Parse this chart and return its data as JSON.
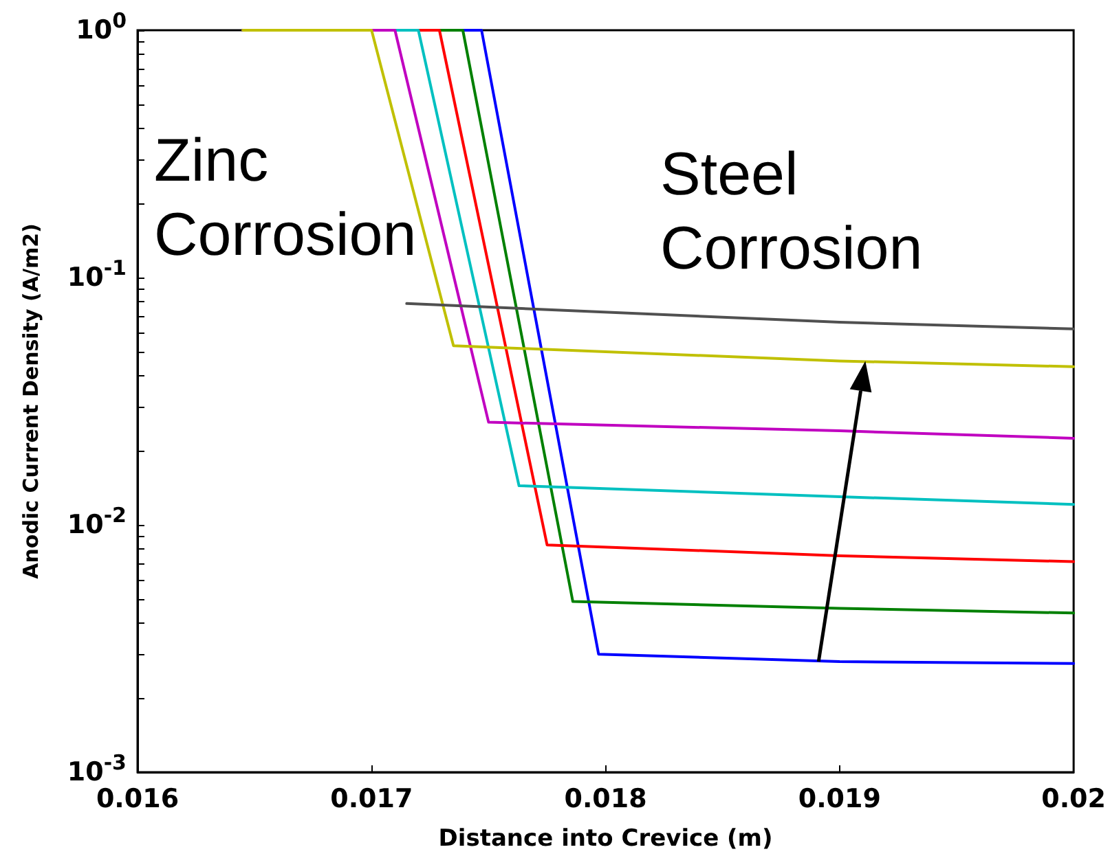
{
  "chart_data": {
    "type": "line",
    "xlabel": "Distance into Crevice (m)",
    "ylabel": "Anodic Current Density (A/m2)",
    "annotations": [
      "Zinc Corrosion",
      "Steel Corrosion"
    ],
    "series": [
      {
        "color": "#0000ff",
        "x": [
          0.01645,
          0.01747,
          0.01797,
          0.019,
          0.02
        ],
        "values": [
          1,
          1,
          0.003,
          0.0028,
          0.00275
        ]
      },
      {
        "color": "#008000",
        "x": [
          0.01645,
          0.01739,
          0.01786,
          0.019,
          0.02
        ],
        "values": [
          1,
          1,
          0.0049,
          0.0046,
          0.0044
        ]
      },
      {
        "color": "#ff0000",
        "x": [
          0.01645,
          0.01729,
          0.01775,
          0.019,
          0.02
        ],
        "values": [
          1,
          1,
          0.0083,
          0.0075,
          0.0071
        ]
      },
      {
        "color": "#00c0c0",
        "x": [
          0.01645,
          0.0172,
          0.01763,
          0.019,
          0.02
        ],
        "values": [
          1,
          1,
          0.0144,
          0.013,
          0.0121
        ]
      },
      {
        "color": "#c000c0",
        "x": [
          0.01645,
          0.0171,
          0.0175,
          0.019,
          0.02
        ],
        "values": [
          1,
          1,
          0.026,
          0.024,
          0.0224
        ]
      },
      {
        "color": "#c0c000",
        "x": [
          0.01645,
          0.017,
          0.01735,
          0.019,
          0.02
        ],
        "values": [
          1,
          1,
          0.053,
          0.046,
          0.0436
        ]
      },
      {
        "color": "#505050",
        "x": [
          0.01715,
          0.019,
          0.02
        ],
        "values": [
          0.0785,
          0.066,
          0.062
        ]
      }
    ],
    "xlim": [
      0.016,
      0.02
    ],
    "xticks": [
      0.016,
      0.017,
      0.018,
      0.019,
      0.02
    ],
    "ylim": [
      0.001,
      1
    ],
    "log": true,
    "yticks": [
      {
        "value": 0.001,
        "label": "10$^{-3}$"
      },
      {
        "value": 0.01,
        "label": "10$^{-2}$"
      },
      {
        "value": 0.1,
        "label": "10$^{-1}$"
      },
      {
        "value": 1,
        "label": "10$^{0}$"
      }
    ],
    "grid": false,
    "marker": "none",
    "line_style": "solid"
  }
}
